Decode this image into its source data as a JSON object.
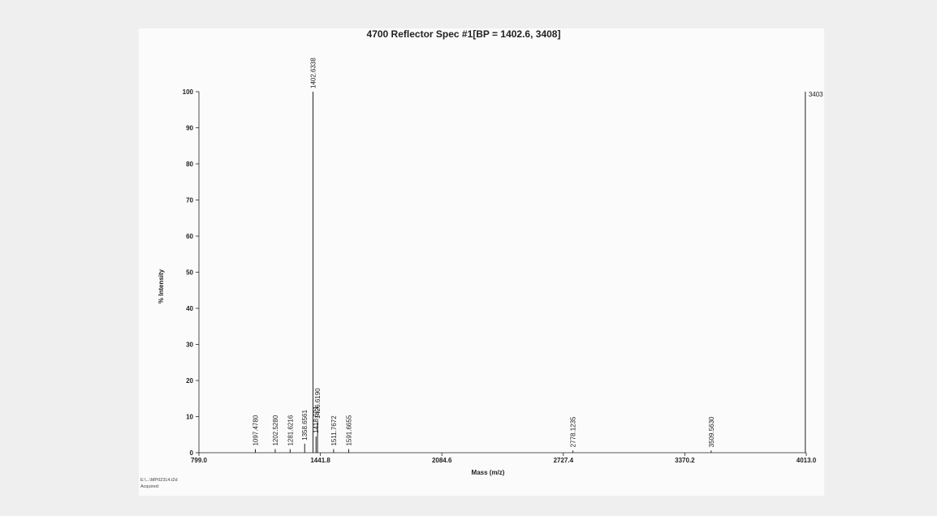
{
  "chart_data": {
    "type": "line",
    "title": "4700 Reflector Spec #1[BP = 1402.6, 3408]",
    "xlabel": "Mass (m/z)",
    "ylabel": "% Intensity",
    "xlim": [
      799.0,
      4013.0
    ],
    "ylim": [
      0,
      100
    ],
    "x_ticks": [
      "799.0",
      "1441.8",
      "2084.6",
      "2727.4",
      "3370.2",
      "4013.0"
    ],
    "y_ticks": [
      "0",
      "10",
      "20",
      "30",
      "40",
      "50",
      "60",
      "70",
      "80",
      "90",
      "100"
    ],
    "grid": false,
    "peaks": [
      {
        "mz": 1097.478,
        "intensity": 1.0,
        "label": "1097.4780"
      },
      {
        "mz": 1202.528,
        "intensity": 1.0,
        "label": "1202.5280"
      },
      {
        "mz": 1281.6216,
        "intensity": 1.0,
        "label": "1281.6216"
      },
      {
        "mz": 1358.6561,
        "intensity": 2.5,
        "label": "1358.6561"
      },
      {
        "mz": 1402.6338,
        "intensity": 100,
        "label": "1402.6338"
      },
      {
        "mz": 1418.621,
        "intensity": 4.5,
        "label": "1418.621"
      },
      {
        "mz": 1426.619,
        "intensity": 8.5,
        "label": "1426.6190"
      },
      {
        "mz": 1511.7672,
        "intensity": 1.0,
        "label": "1511.7672"
      },
      {
        "mz": 1591.6655,
        "intensity": 1.0,
        "label": "1591.6655"
      },
      {
        "mz": 2778.1235,
        "intensity": 0.6,
        "label": "2778.1235"
      },
      {
        "mz": 3509.563,
        "intensity": 0.6,
        "label": "3509.5630"
      },
      {
        "mz": 4008.0,
        "intensity": 100,
        "label": "3403"
      }
    ]
  },
  "footer": {
    "line1": "E:\\...\\MP02314.t2d",
    "line2": "Acquired:"
  },
  "colors": {
    "background": "#efefef",
    "paper": "#fbfbfb",
    "ink": "#222222"
  }
}
